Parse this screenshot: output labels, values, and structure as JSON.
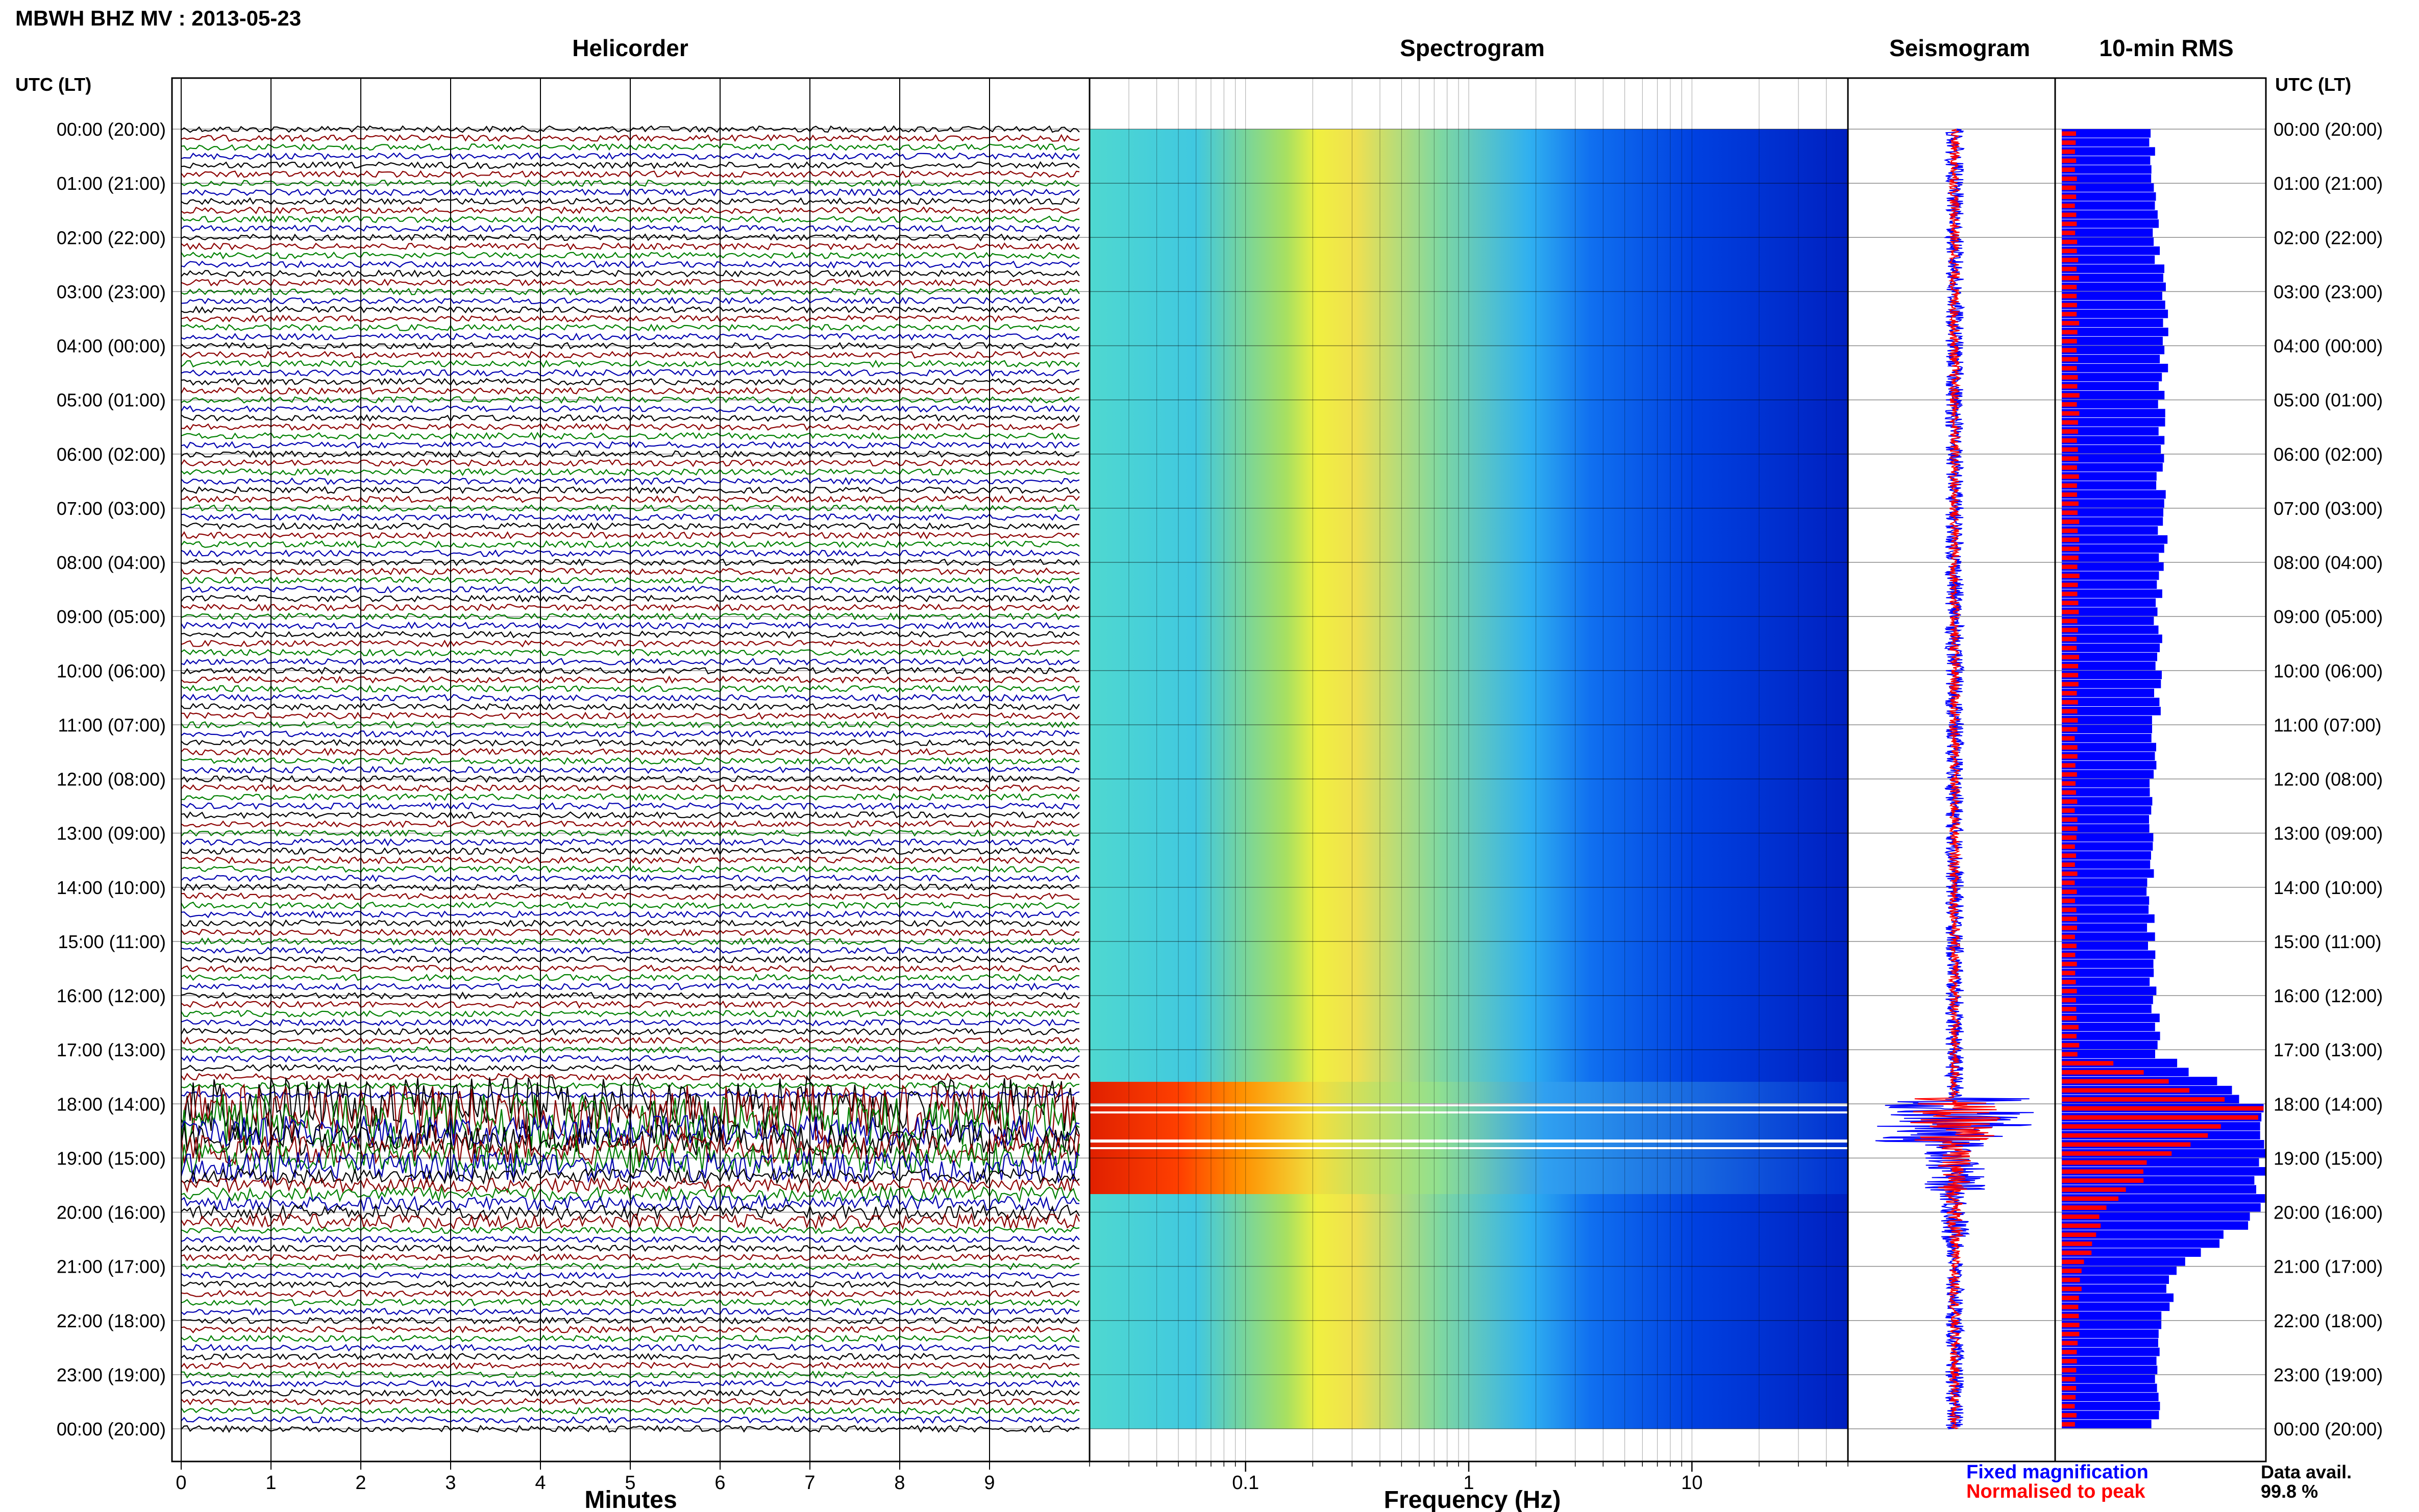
{
  "header": {
    "title": "MBWH BHZ MV : 2013-05-23"
  },
  "panels": {
    "helicorder": "Helicorder",
    "spectrogram": "Spectrogram",
    "seismogram": "Seismogram",
    "rms": "10-min RMS"
  },
  "axes": {
    "time_label_left": "UTC (LT)",
    "time_label_right": "UTC (LT)",
    "minutes_label": "Minutes",
    "frequency_label": "Frequency (Hz)"
  },
  "legend": {
    "fixed": "Fixed magnification",
    "normalised": "Normalised to peak",
    "fixed_color": "#0000ff",
    "normalised_color": "#ff0000"
  },
  "availability": {
    "label": "Data avail.",
    "value": "99.8 %"
  },
  "chart_data": [
    {
      "type": "line",
      "name": "helicorder",
      "xlabel": "Minutes",
      "xlim": [
        0,
        10
      ],
      "x_ticks": [
        0,
        1,
        2,
        3,
        4,
        5,
        6,
        7,
        8,
        9
      ],
      "trace_colors": [
        "#000000",
        "#8b0000",
        "#008000",
        "#0000b0"
      ],
      "traces_per_hour": 6,
      "hour_labels": [
        "00:00 (20:00)",
        "01:00 (21:00)",
        "02:00 (22:00)",
        "03:00 (23:00)",
        "04:00 (00:00)",
        "05:00 (01:00)",
        "06:00 (02:00)",
        "07:00 (03:00)",
        "08:00 (04:00)",
        "09:00 (05:00)",
        "10:00 (06:00)",
        "11:00 (07:00)",
        "12:00 (08:00)",
        "13:00 (09:00)",
        "14:00 (10:00)",
        "15:00 (11:00)",
        "16:00 (12:00)",
        "17:00 (13:00)",
        "18:00 (14:00)",
        "19:00 (15:00)",
        "20:00 (16:00)",
        "21:00 (17:00)",
        "22:00 (18:00)",
        "23:00 (19:00)",
        "00:00 (20:00)"
      ]
    },
    {
      "type": "heatmap",
      "name": "spectrogram",
      "xlabel": "Frequency (Hz)",
      "xscale": "log",
      "xlim": [
        0.02,
        50
      ],
      "x_ticks": [
        0.1,
        1,
        10
      ],
      "x_tick_labels": [
        "0.1",
        "1",
        "10"
      ]
    },
    {
      "type": "line",
      "name": "seismogram",
      "series": [
        {
          "name": "Fixed magnification",
          "color": "#0000ff"
        },
        {
          "name": "Normalised to peak",
          "color": "#ff0000"
        }
      ]
    },
    {
      "type": "bar",
      "name": "10-min RMS",
      "fixed_hourly": [
        0.45,
        0.45,
        0.46,
        0.5,
        0.5,
        0.49,
        0.48,
        0.49,
        0.5,
        0.47,
        0.48,
        0.46,
        0.45,
        0.44,
        0.43,
        0.44,
        0.45,
        0.48,
        1.0,
        1.0,
        0.95,
        0.55,
        0.5,
        0.47,
        0.45
      ],
      "normalised_hourly": [
        0.07,
        0.07,
        0.07,
        0.08,
        0.08,
        0.08,
        0.08,
        0.08,
        0.08,
        0.08,
        0.08,
        0.07,
        0.07,
        0.07,
        0.07,
        0.07,
        0.07,
        0.08,
        1.0,
        0.45,
        0.2,
        0.1,
        0.08,
        0.07,
        0.07
      ]
    }
  ]
}
